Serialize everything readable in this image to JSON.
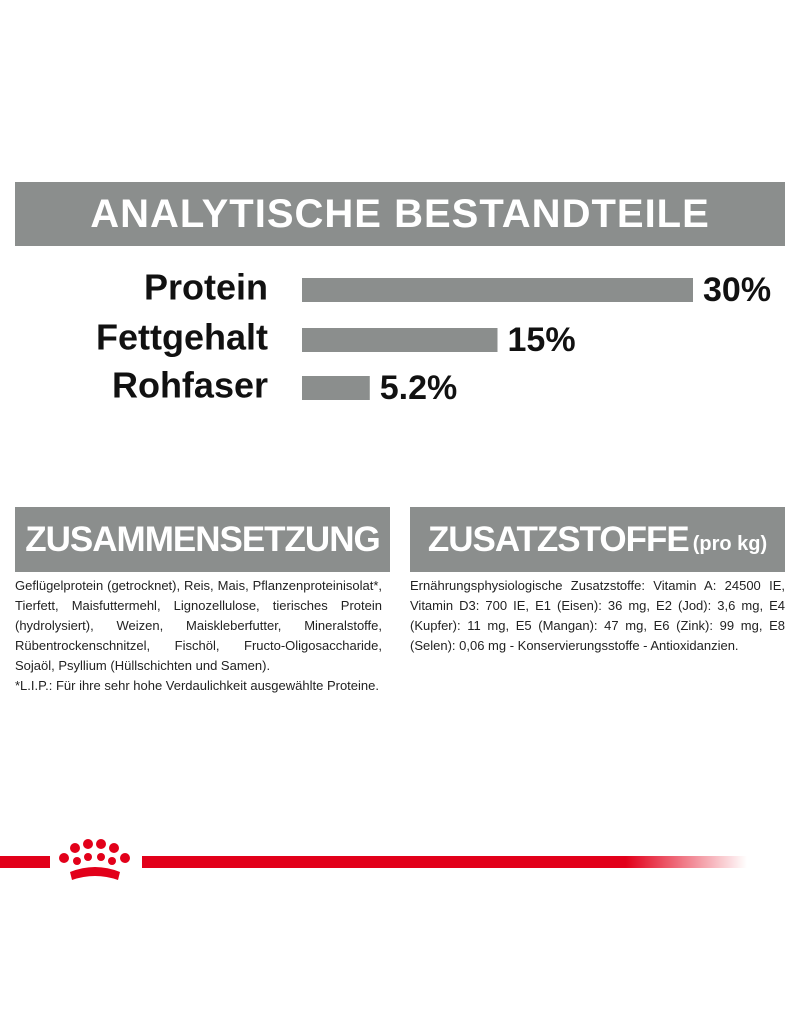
{
  "chart_data": {
    "type": "bar",
    "title": "ANALYTISCHE BESTANDTEILE",
    "categories": [
      "Protein",
      "Fettgehalt",
      "Rohfaser"
    ],
    "values": [
      30,
      15,
      5.2
    ],
    "value_labels": [
      "30%",
      "15%",
      "5.2%"
    ],
    "color": "#8b8e8d"
  },
  "composition": {
    "title": "ZUSAMMENSETZUNG",
    "text": "Geflügelprotein (getrocknet), Reis, Mais, Pflanzenproteinisolat*, Tierfett, Maisfuttermehl, Lignozellulose, tierisches Protein (hydrolysiert), Weizen, Maiskleberfutter, Mineralstoffe, Rübentrockenschnitzel, Fischöl, Fructo-Oligosaccharide, Sojaöl, Psyllium (Hüllschichten und Samen).",
    "footnote": "*L.I.P.: Für ihre sehr hohe Verdaulichkeit ausgewählte Proteine."
  },
  "additives": {
    "title": "ZUSATZSTOFFE",
    "unit": "(pro kg)",
    "text": "Ernährungsphysiologische Zusatzstoffe: Vitamin A: 24500 IE, Vitamin D3: 700 IE, E1 (Eisen): 36 mg, E2 (Jod): 3,6 mg, E4 (Kupfer): 11 mg, E5 (Mangan): 47 mg, E6 (Zink): 99 mg, E8 (Selen): 0,06 mg - Konservierungsstoffe - Antioxidanzien."
  }
}
